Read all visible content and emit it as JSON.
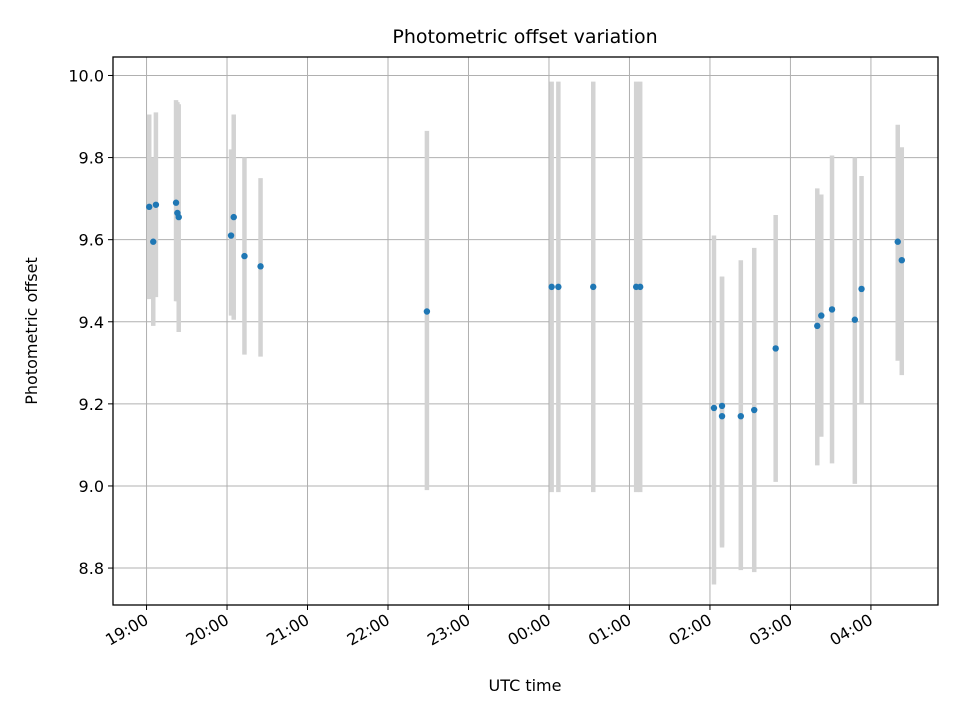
{
  "chart_data": {
    "type": "scatter",
    "title": "Photometric offset variation",
    "xlabel": "UTC time",
    "ylabel": "Photometric offset",
    "x_axis": "time (hours UTC, crossing midnight)",
    "xlim": [
      "18:35",
      "04:50"
    ],
    "ylim": [
      8.71,
      10.045
    ],
    "grid": true,
    "x_ticks": [
      "19:00",
      "20:00",
      "21:00",
      "22:00",
      "23:00",
      "00:00",
      "01:00",
      "02:00",
      "03:00",
      "04:00"
    ],
    "y_ticks": [
      "8.8",
      "9.0",
      "9.2",
      "9.4",
      "9.6",
      "9.8",
      "10.0"
    ],
    "series": [
      {
        "marker_color": "#1f77b4",
        "errorbar_color": "#d3d3d3",
        "points": [
          {
            "x": "19:02",
            "y": 9.68,
            "ylow": 9.455,
            "yhigh": 9.905
          },
          {
            "x": "19:05",
            "y": 9.595,
            "ylow": 9.39,
            "yhigh": 9.8
          },
          {
            "x": "19:07",
            "y": 9.685,
            "ylow": 9.46,
            "yhigh": 9.91
          },
          {
            "x": "19:22",
            "y": 9.69,
            "ylow": 9.45,
            "yhigh": 9.94
          },
          {
            "x": "19:23",
            "y": 9.665,
            "ylow": 9.45,
            "yhigh": 9.935
          },
          {
            "x": "19:24",
            "y": 9.655,
            "ylow": 9.375,
            "yhigh": 9.93
          },
          {
            "x": "20:03",
            "y": 9.61,
            "ylow": 9.415,
            "yhigh": 9.82
          },
          {
            "x": "20:05",
            "y": 9.655,
            "ylow": 9.405,
            "yhigh": 9.905
          },
          {
            "x": "20:13",
            "y": 9.56,
            "ylow": 9.32,
            "yhigh": 9.8
          },
          {
            "x": "20:25",
            "y": 9.535,
            "ylow": 9.315,
            "yhigh": 9.75
          },
          {
            "x": "22:29",
            "y": 9.425,
            "ylow": 8.99,
            "yhigh": 9.865
          },
          {
            "x": "00:02",
            "y": 9.485,
            "ylow": 8.985,
            "yhigh": 9.985
          },
          {
            "x": "00:07",
            "y": 9.485,
            "ylow": 8.985,
            "yhigh": 9.985
          },
          {
            "x": "00:33",
            "y": 9.485,
            "ylow": 8.985,
            "yhigh": 9.985
          },
          {
            "x": "01:05",
            "y": 9.485,
            "ylow": 8.985,
            "yhigh": 9.985
          },
          {
            "x": "01:08",
            "y": 9.485,
            "ylow": 8.985,
            "yhigh": 9.985
          },
          {
            "x": "02:03",
            "y": 9.19,
            "ylow": 8.76,
            "yhigh": 9.61
          },
          {
            "x": "02:09",
            "y": 9.195,
            "ylow": 8.855,
            "yhigh": 9.51
          },
          {
            "x": "02:09",
            "y": 9.17,
            "ylow": 8.85,
            "yhigh": 9.51
          },
          {
            "x": "02:23",
            "y": 9.17,
            "ylow": 8.795,
            "yhigh": 9.55
          },
          {
            "x": "02:33",
            "y": 9.185,
            "ylow": 8.79,
            "yhigh": 9.58
          },
          {
            "x": "02:49",
            "y": 9.335,
            "ylow": 9.01,
            "yhigh": 9.66
          },
          {
            "x": "03:20",
            "y": 9.39,
            "ylow": 9.05,
            "yhigh": 9.725
          },
          {
            "x": "03:23",
            "y": 9.415,
            "ylow": 9.12,
            "yhigh": 9.71
          },
          {
            "x": "03:31",
            "y": 9.43,
            "ylow": 9.055,
            "yhigh": 9.805
          },
          {
            "x": "03:48",
            "y": 9.405,
            "ylow": 9.005,
            "yhigh": 9.8
          },
          {
            "x": "03:53",
            "y": 9.48,
            "ylow": 9.2,
            "yhigh": 9.755
          },
          {
            "x": "04:20",
            "y": 9.595,
            "ylow": 9.305,
            "yhigh": 9.88
          },
          {
            "x": "04:23",
            "y": 9.55,
            "ylow": 9.27,
            "yhigh": 9.825
          }
        ]
      }
    ]
  }
}
